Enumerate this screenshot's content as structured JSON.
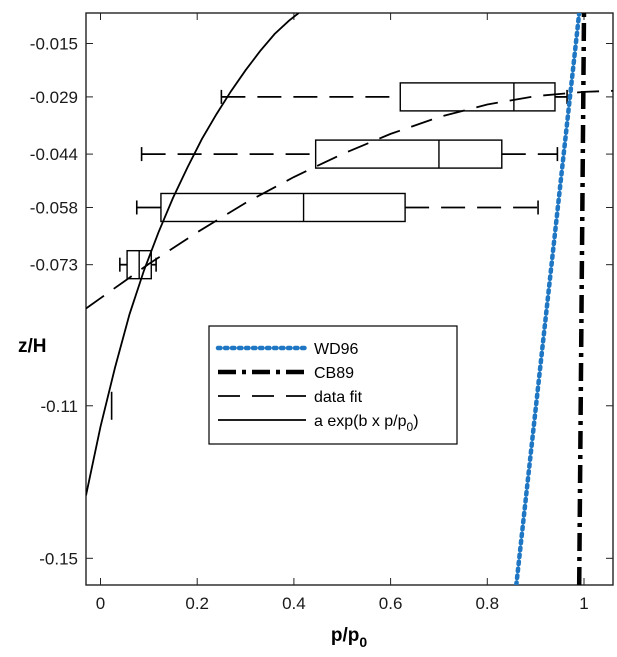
{
  "chart_data": {
    "type": "box",
    "xlabel": "p/p",
    "xlabel_sub": "0",
    "ylabel": "z/H",
    "xlim": [
      -0.03,
      1.06
    ],
    "ylim": [
      -0.157,
      -0.007
    ],
    "xticks": [
      0,
      0.2,
      0.4,
      0.6,
      0.8,
      1
    ],
    "xtick_labels": [
      "0",
      "0.2",
      "0.4",
      "0.6",
      "0.8",
      "1"
    ],
    "yticks": [
      -0.015,
      -0.029,
      -0.044,
      -0.058,
      -0.073,
      -0.11,
      -0.15
    ],
    "ytick_labels": [
      "-0.015",
      "-0.029",
      "-0.044",
      "-0.058",
      "-0.073",
      "-0.11",
      "-0.15"
    ],
    "boxes": [
      {
        "z": -0.029,
        "whisker_low": 0.25,
        "q1": 0.62,
        "median": 0.855,
        "q3": 0.94,
        "whisker_high": 0.965
      },
      {
        "z": -0.044,
        "whisker_low": 0.085,
        "q1": 0.445,
        "median": 0.7,
        "q3": 0.83,
        "whisker_high": 0.945
      },
      {
        "z": -0.058,
        "whisker_low": 0.075,
        "q1": 0.125,
        "median": 0.42,
        "q3": 0.63,
        "whisker_high": 0.905
      },
      {
        "z": -0.073,
        "whisker_low": 0.04,
        "q1": 0.055,
        "median": 0.08,
        "q3": 0.105,
        "whisker_high": 0.115
      },
      {
        "z": -0.11,
        "whisker_low": 0.023,
        "q1": 0.023,
        "median": 0.023,
        "q3": 0.023,
        "whisker_high": 0.023
      }
    ],
    "lines": [
      {
        "name": "WD96",
        "style": "dotted",
        "color": "#1f77c4",
        "points": [
          [
            0.86,
            -0.157
          ],
          [
            0.99,
            -0.007
          ]
        ]
      },
      {
        "name": "CB89",
        "style": "dashdot",
        "color": "#000000",
        "points": [
          [
            0.99,
            -0.157
          ],
          [
            1.0,
            -0.007
          ]
        ]
      },
      {
        "name": "data fit",
        "style": "dashed",
        "color": "#000000",
        "points": [
          [
            -0.03,
            -0.0845
          ],
          [
            0.0,
            -0.0818
          ],
          [
            0.1,
            -0.0728
          ],
          [
            0.2,
            -0.0645
          ],
          [
            0.3,
            -0.0568
          ],
          [
            0.4,
            -0.05
          ],
          [
            0.5,
            -0.044
          ],
          [
            0.6,
            -0.0387
          ],
          [
            0.7,
            -0.0343
          ],
          [
            0.8,
            -0.031
          ],
          [
            0.9,
            -0.0288
          ],
          [
            1.0,
            -0.0277
          ],
          [
            1.06,
            -0.0274
          ]
        ]
      },
      {
        "name": "a exp(b x p/p0)",
        "style": "solid",
        "color": "#000000",
        "points": [
          [
            -0.03,
            -0.1335
          ],
          [
            0.0,
            -0.1155
          ],
          [
            0.03,
            -0.1
          ],
          [
            0.06,
            -0.086
          ],
          [
            0.09,
            -0.0745
          ],
          [
            0.12,
            -0.0645
          ],
          [
            0.15,
            -0.0555
          ],
          [
            0.18,
            -0.0475
          ],
          [
            0.21,
            -0.04
          ],
          [
            0.24,
            -0.0335
          ],
          [
            0.27,
            -0.0275
          ],
          [
            0.3,
            -0.022
          ],
          [
            0.33,
            -0.017
          ],
          [
            0.36,
            -0.0125
          ],
          [
            0.39,
            -0.009
          ],
          [
            0.41,
            -0.007
          ]
        ]
      }
    ],
    "legend": {
      "placement": "center",
      "entries": [
        {
          "label": "WD96",
          "style": "dotted",
          "color": "#1f77c4"
        },
        {
          "label": "CB89",
          "style": "dashdot",
          "color": "#000000"
        },
        {
          "label": "data fit",
          "style": "dashed",
          "color": "#000000"
        },
        {
          "label": "a exp(b x p/p",
          "sub": "0",
          "tail": ")",
          "style": "solid",
          "color": "#000000"
        }
      ]
    }
  }
}
